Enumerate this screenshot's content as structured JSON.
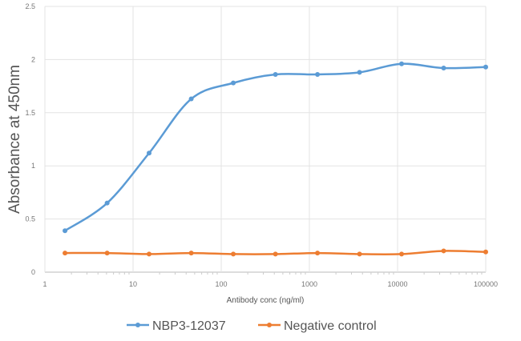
{
  "chart_data": {
    "type": "line",
    "title": "",
    "xlabel": "Antibody conc (ng/ml)",
    "ylabel": "Absorbance at 450nm",
    "xscale": "log",
    "xlim": [
      1,
      100000
    ],
    "ylim": [
      0,
      2.5
    ],
    "xticks": [
      "1",
      "10",
      "100",
      "1000",
      "10000",
      "100000"
    ],
    "yticks": [
      "0",
      "0.5",
      "1",
      "1.5",
      "2",
      "2.5"
    ],
    "grid": true,
    "legend_position": "bottom",
    "x": [
      1.69,
      5.08,
      15.2,
      45.7,
      137,
      412,
      1235,
      3704,
      11111,
      33333,
      100000
    ],
    "series": [
      {
        "name": "NBP3-12037",
        "color": "#5b9bd5",
        "values": [
          0.39,
          0.65,
          1.12,
          1.63,
          1.78,
          1.86,
          1.86,
          1.88,
          1.96,
          1.92,
          1.93
        ]
      },
      {
        "name": "Negative control",
        "color": "#ed7d31",
        "values": [
          0.18,
          0.18,
          0.17,
          0.18,
          0.17,
          0.17,
          0.18,
          0.17,
          0.17,
          0.2,
          0.19
        ]
      }
    ]
  }
}
